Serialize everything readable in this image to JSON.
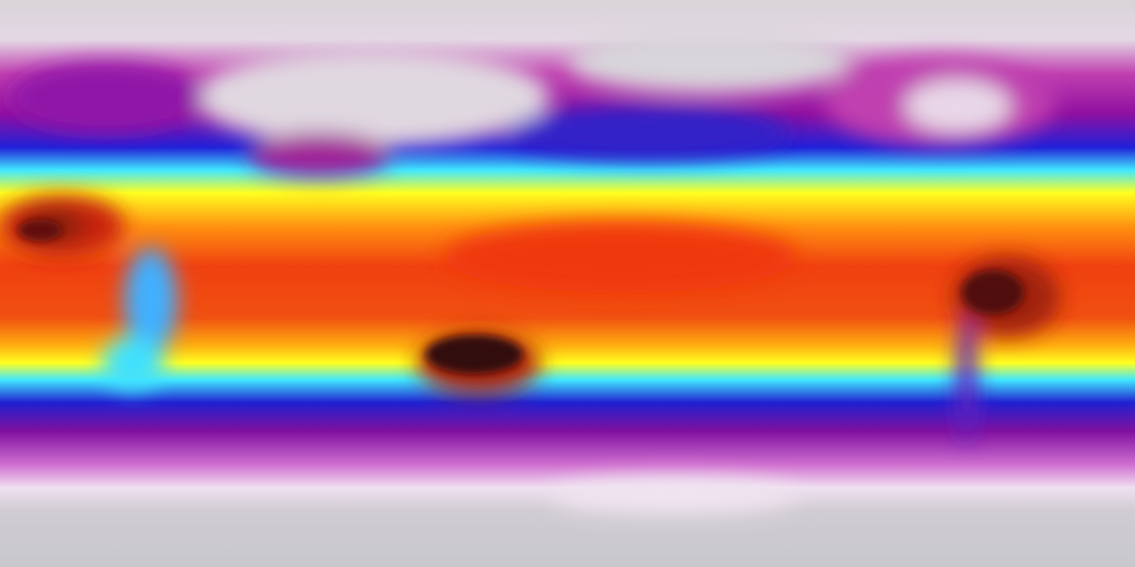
{
  "map": {
    "projection": "equirectangular",
    "palette": {
      "polar": "#d4d2d6",
      "cold_pink": "#e8c0e8",
      "purple": "#a01898",
      "blue": "#2018d8",
      "cyan": "#40e8ff",
      "yellow": "#ffff20",
      "orange": "#ff9010",
      "red": "#f03c10",
      "hot_dark": "#301010"
    }
  }
}
